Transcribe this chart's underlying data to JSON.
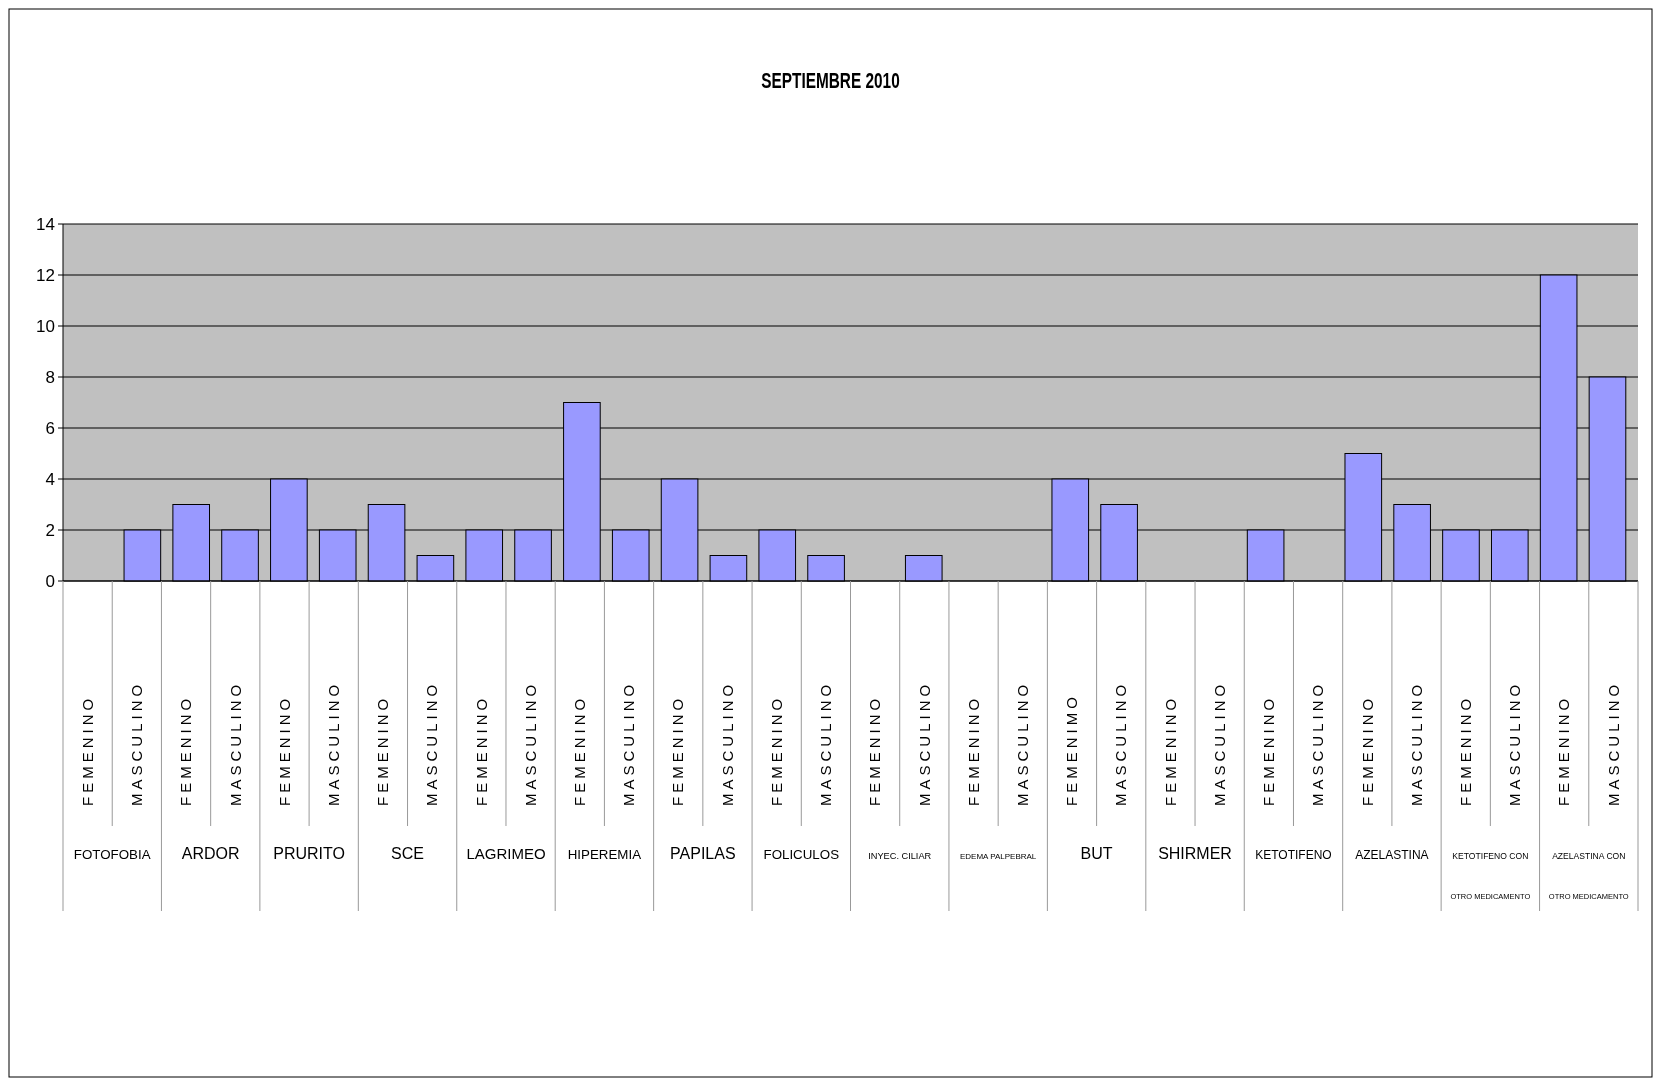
{
  "chart_data": {
    "type": "bar",
    "title": "SEPTIEMBRE 2010",
    "categories": [
      "FEMENINO",
      "MASCULINO",
      "FEMENINO",
      "MASCULINO",
      "FEMENINO",
      "MASCULINO",
      "FEMENINO",
      "MASCULINO",
      "FEMENINO",
      "MASCULINO",
      "FEMENINO",
      "MASCULINO",
      "FEMENINO",
      "MASCULINO",
      "FEMENINO",
      "MASCULINO",
      "FEMENINO",
      "MASCULINO",
      "FEMENINO",
      "MASCULINO",
      "FEMENIMO",
      "MASCULINO",
      "FEMENINO",
      "MASCULINO",
      "FEMENINO",
      "MASCULINO",
      "FEMENINO",
      "MASCULINO",
      "FEMENINO",
      "MASCULINO",
      "FEMENINO",
      "MASCULINO"
    ],
    "values": [
      0,
      2,
      3,
      2,
      4,
      2,
      3,
      1,
      2,
      2,
      7,
      2,
      4,
      1,
      2,
      1,
      0,
      1,
      0,
      0,
      4,
      3,
      0,
      0,
      2,
      0,
      5,
      3,
      2,
      2,
      12,
      8
    ],
    "color": "#9999ff",
    "annotations": [
      "FOTOFOBIA",
      "ARDOR",
      "PRURITO",
      "SCE",
      "LAGRIMEO",
      "HIPEREMIA",
      "PAPILAS",
      "FOLICULOS",
      "INYEC. CILIAR",
      "EDEMA PALPEBRAL",
      "BUT",
      "SHIRMER",
      "KETOTIFENO",
      "AZELASTINA",
      "KETOTIFENO CON OTRO MEDICAMENTO",
      "AZELASTINA CON OTRO MEDICAMENTO"
    ],
    "ylim": [
      0,
      14
    ],
    "yticks": [
      0,
      2,
      4,
      6,
      8,
      10,
      12,
      14
    ],
    "grid": "y"
  }
}
